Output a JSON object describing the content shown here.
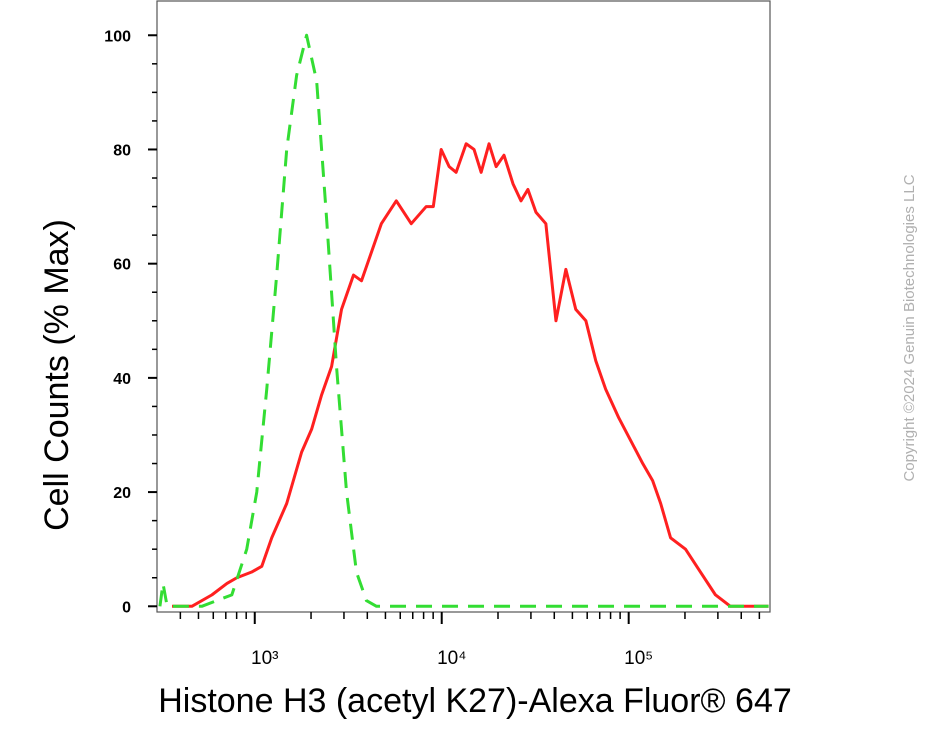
{
  "chart_data": {
    "type": "line",
    "x_label": "Histone H3 (acetyl K27)-Alexa Fluor® 647",
    "y_label": "Cell Counts (% Max)",
    "annotation": "Copyright ©2024 Genuin Biotechnologies LLC",
    "xscale": "log",
    "xlim": [
      300,
      570000
    ],
    "ylim": [
      -1,
      106
    ],
    "xticks": [
      {
        "value": 1000,
        "label": "10³"
      },
      {
        "value": 10000,
        "label": "10⁴"
      },
      {
        "value": 100000,
        "label": "10⁵"
      }
    ],
    "xminorticks": [
      400,
      500,
      600,
      700,
      800,
      900,
      2000,
      3000,
      4000,
      5000,
      6000,
      7000,
      8000,
      9000,
      20000,
      30000,
      40000,
      50000,
      60000,
      70000,
      80000,
      90000,
      200000,
      300000,
      400000,
      500000
    ],
    "yticks": [
      0,
      20,
      40,
      60,
      80,
      100
    ],
    "yminorticks": [
      5,
      10,
      15,
      25,
      30,
      35,
      45,
      50,
      55,
      65,
      70,
      75,
      85,
      90,
      95
    ],
    "series": [
      {
        "color": "#ff2020",
        "dash": false,
        "x": [
          361,
          461,
          590,
          710,
          802,
          963,
          1090,
          1233,
          1482,
          1781,
          2014,
          2277,
          2576,
          2911,
          3373,
          3724,
          4207,
          4754,
          5715,
          6871,
          8260,
          9016,
          9934,
          10960,
          11940,
          13510,
          14890,
          16250,
          17910,
          19540,
          21530,
          24050,
          26550,
          28910,
          31920,
          36060,
          40830,
          46130,
          52120,
          59020,
          66680,
          75340,
          88510,
          102600,
          118900,
          134300,
          148300,
          167500,
          201400,
          242100,
          291100,
          349900,
          447700,
          560000
        ],
        "values": [
          0,
          0,
          2,
          4,
          5,
          6,
          7,
          12,
          18,
          27,
          31,
          37,
          42,
          52,
          58,
          57,
          62,
          67,
          71,
          67,
          70,
          70,
          80,
          77,
          76,
          81,
          80,
          76,
          81,
          77,
          79,
          74,
          71,
          73,
          69,
          67,
          50,
          59,
          52,
          50,
          43,
          38,
          33,
          29,
          25,
          22,
          18,
          12,
          10,
          6,
          2,
          0,
          0,
          0
        ]
      },
      {
        "color": "#33dd33",
        "dash": true,
        "x": [
          311,
          323,
          340,
          521,
          754,
          906,
          1025,
          1159,
          1310,
          1482,
          1675,
          1893,
          2143,
          2421,
          2737,
          3097,
          3499,
          3955,
          4477,
          560000
        ],
        "values": [
          0,
          4,
          0,
          0,
          2,
          10,
          20,
          38,
          58,
          80,
          93,
          100,
          92,
          68,
          42,
          20,
          6,
          1,
          0,
          0
        ]
      }
    ]
  }
}
